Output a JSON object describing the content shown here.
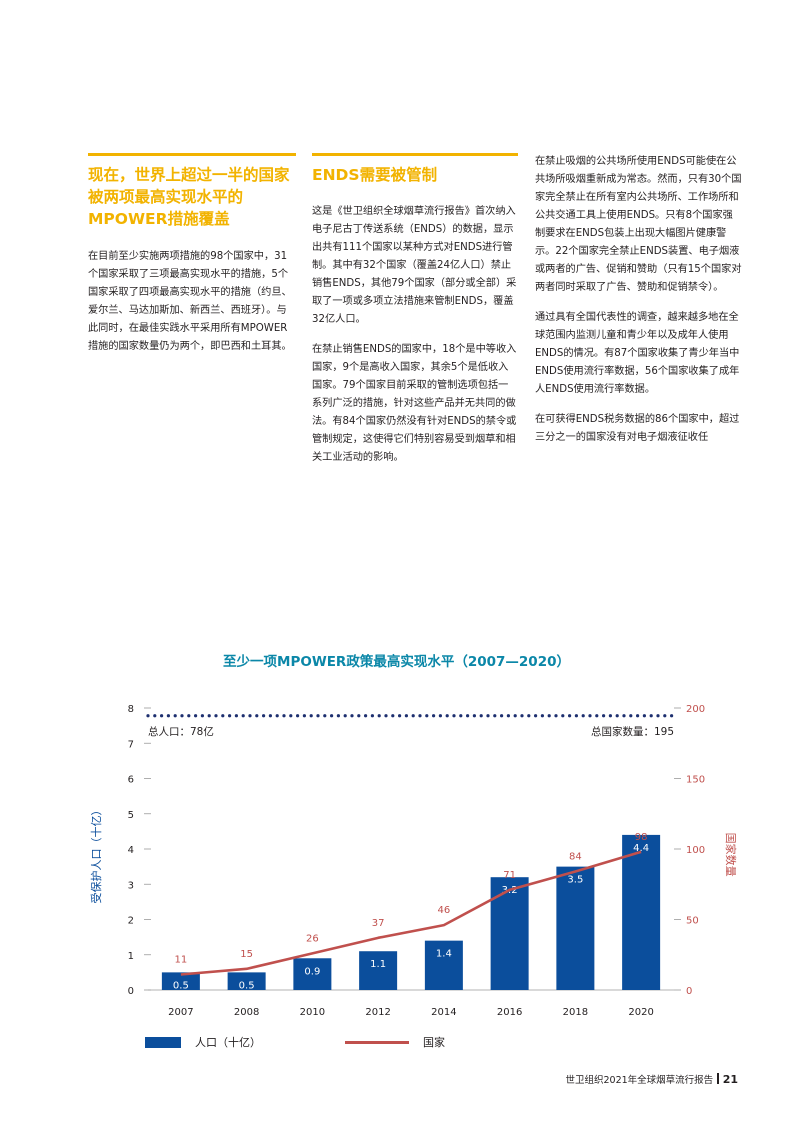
{
  "section1": {
    "headline": "现在，世界上超过一半的国家被两项最高实现水平的MPOWER措施覆盖",
    "paragraphs": [
      "在目前至少实施两项措施的98个国家中，31个国家采取了三项最高实现水平的措施，5个国家采取了四项最高实现水平的措施（约旦、爱尔兰、马达加斯加、新西兰、西班牙）。与此同时，在最佳实践水平采用所有MPOWER措施的国家数量仍为两个，即巴西和土耳其。"
    ]
  },
  "section2": {
    "headline": "ENDS需要被管制",
    "paragraphs": [
      "这是《世卫组织全球烟草流行报告》首次纳入电子尼古丁传送系统（ENDS）的数据，显示出共有111个国家以某种方式对ENDS进行管制。其中有32个国家（覆盖24亿人口）禁止销售ENDS，其他79个国家（部分或全部）采取了一项或多项立法措施来管制ENDS，覆盖32亿人口。",
      "在禁止销售ENDS的国家中，18个是中等收入国家，9个是高收入国家，其余5个是低收入国家。79个国家目前采取的管制选项包括一系列广泛的措施，针对这些产品并无共同的做法。有84个国家仍然没有针对ENDS的禁令或管制规定，这使得它们特别容易受到烟草和相关工业活动的影响。"
    ]
  },
  "section3": {
    "paragraphs": [
      "在禁止吸烟的公共场所使用ENDS可能使在公共场所吸烟重新成为常态。然而，只有30个国家完全禁止在所有室内公共场所、工作场所和公共交通工具上使用ENDS。只有8个国家强制要求在ENDS包装上出现大幅图片健康警示。22个国家完全禁止ENDS装置、电子烟液或两者的广告、促销和赞助（只有15个国家对两者同时采取了广告、赞助和促销禁令）。",
      "通过具有全国代表性的调查，越来越多地在全球范围内监测儿童和青少年以及成年人使用ENDS的情况。有87个国家收集了青少年当中ENDS使用流行率数据，56个国家收集了成年人ENDS使用流行率数据。",
      "在可获得ENDS税务数据的86个国家中，超过三分之一的国家没有对电子烟液征收任"
    ]
  },
  "chart_data": {
    "type": "bar",
    "title": "至少一项MPOWER政策最高实现水平（2007—2020）",
    "categories": [
      "2007",
      "2008",
      "2010",
      "2012",
      "2014",
      "2016",
      "2018",
      "2020"
    ],
    "series": [
      {
        "name": "人口（十亿）",
        "type": "bar",
        "axis": "left",
        "values": [
          0.5,
          0.5,
          0.9,
          1.1,
          1.4,
          3.2,
          3.5,
          4.4
        ],
        "labels": [
          "0.5",
          "0.5",
          "0.9",
          "1.1",
          "1.4",
          "3.2",
          "3.5",
          "4.4"
        ]
      },
      {
        "name": "国家",
        "type": "line",
        "axis": "right",
        "values": [
          11,
          15,
          26,
          37,
          46,
          71,
          84,
          98
        ],
        "labels": [
          "11",
          "15",
          "26",
          "37",
          "46",
          "71",
          "84",
          "98"
        ]
      }
    ],
    "ylabel": "受保护人口（十亿）",
    "y2label": "国家数量",
    "ylim": [
      0,
      8
    ],
    "y2lim": [
      0,
      200
    ],
    "yticks": [
      "0",
      "1",
      "2",
      "3",
      "4",
      "5",
      "6",
      "7",
      "8"
    ],
    "y2ticks": [
      "0",
      "50",
      "100",
      "150",
      "200"
    ],
    "reference_line": {
      "value": 7.78,
      "left_label": "总人口：78亿",
      "right_label": "总国家数量：195"
    },
    "legend": {
      "placement": "bottom-left",
      "bar_label": "人口（十亿）",
      "line_label": "国家"
    },
    "colors": {
      "bar": "#0b4e9c",
      "line": "#c0504d",
      "left_axis": "#0b4e9c",
      "right_axis": "#c0504d",
      "dots": "#1d2f6f",
      "title": "#0b87a8"
    }
  },
  "footer": {
    "report_title": "世卫组织2021年全球烟草流行报告",
    "page_number": "21"
  }
}
